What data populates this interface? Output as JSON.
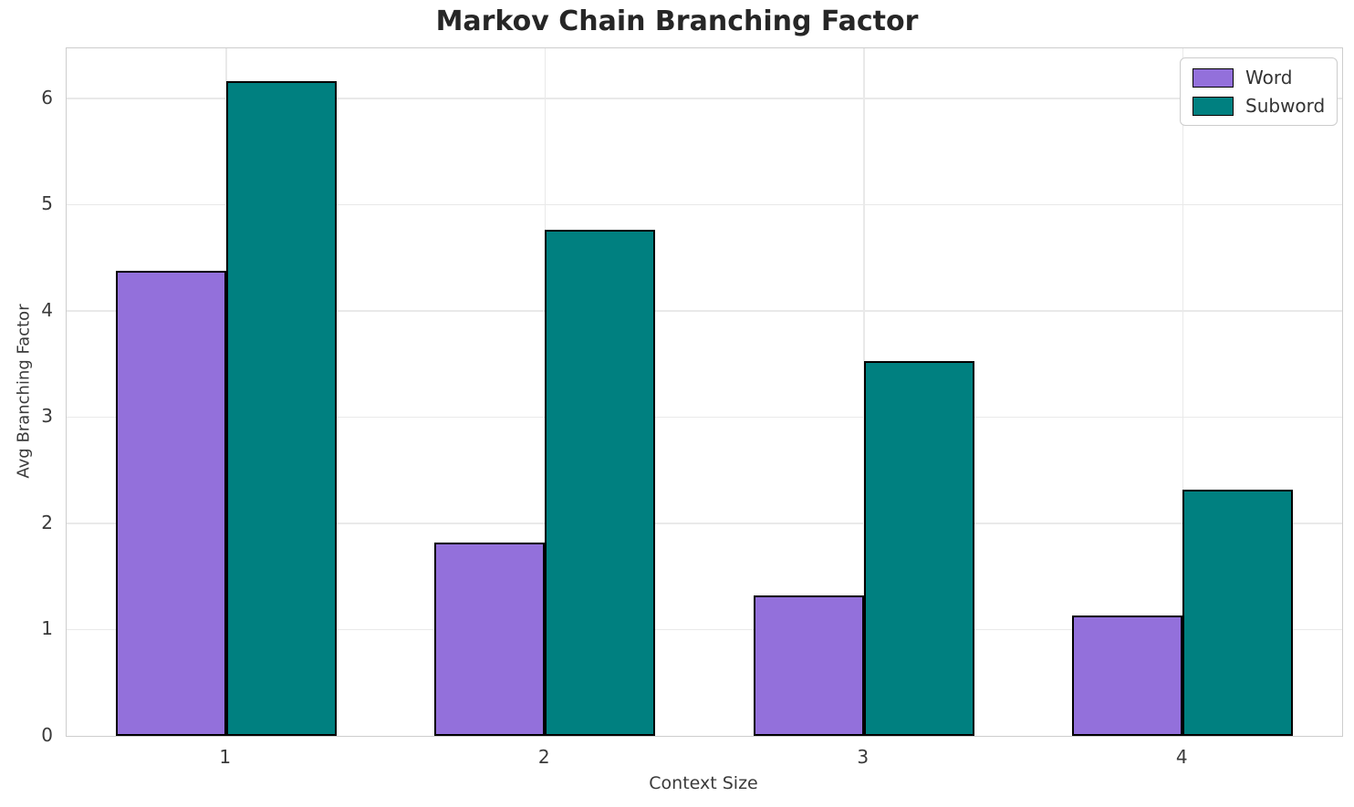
{
  "chart_data": {
    "type": "bar",
    "title": "Markov Chain Branching Factor",
    "xlabel": "Context Size",
    "ylabel": "Avg Branching Factor",
    "categories": [
      "1",
      "2",
      "3",
      "4"
    ],
    "series": [
      {
        "name": "Word",
        "color": "#9370DB",
        "values": [
          4.38,
          1.82,
          1.32,
          1.13
        ]
      },
      {
        "name": "Subword",
        "color": "#008080",
        "values": [
          6.16,
          4.76,
          3.53,
          2.32
        ]
      }
    ],
    "ylim": [
      0,
      6.47
    ],
    "yticks": [
      0,
      1,
      2,
      3,
      4,
      5,
      6
    ],
    "grid": true,
    "legend_position": "upper right",
    "bar_edge_color": "#000000",
    "colors": {
      "background": "#ffffff",
      "gridline": "#e9e9e9",
      "spine": "#cdcdcd",
      "title_text": "#262626",
      "tick_text": "#3a3a3a"
    }
  }
}
